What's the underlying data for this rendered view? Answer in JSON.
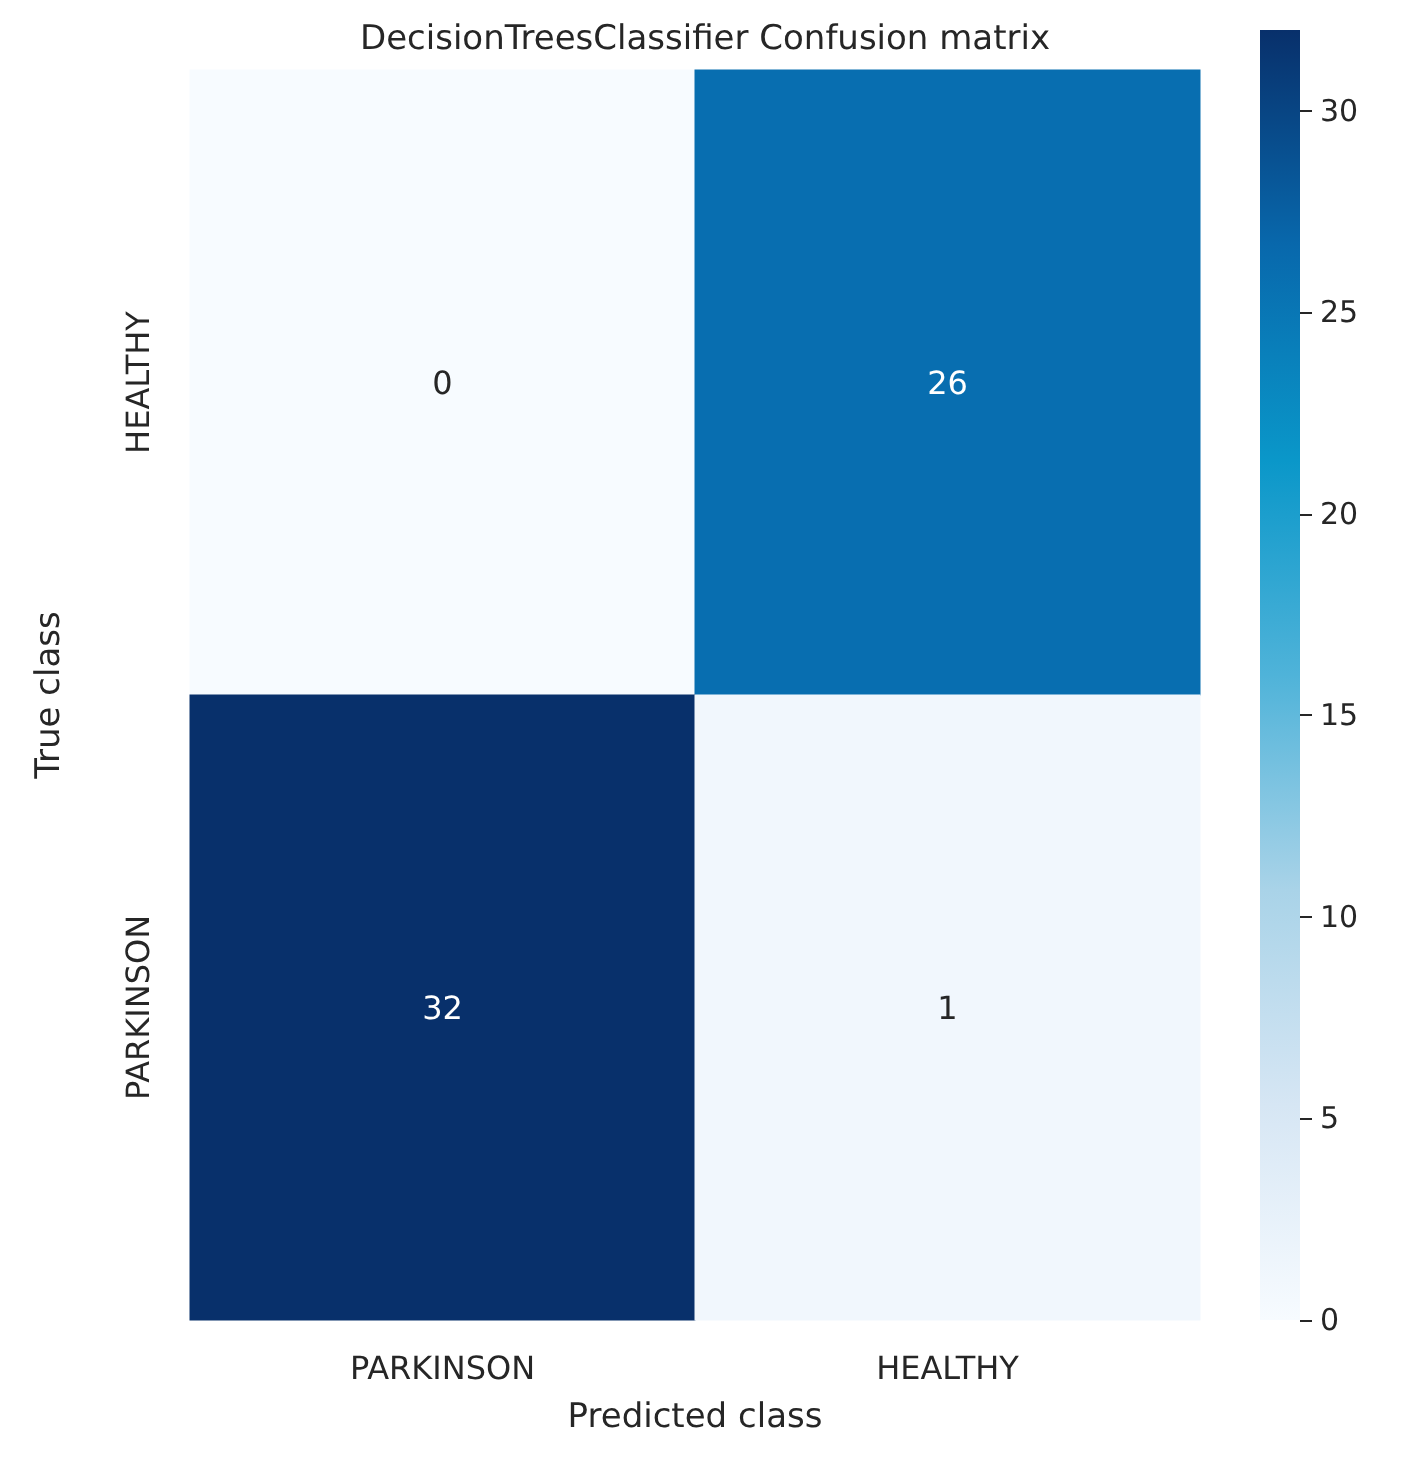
{
  "chart_data": {
    "type": "heatmap",
    "title": "DecisionTreesClassifier Confusion matrix",
    "xlabel": "Predicted class",
    "ylabel": "True class",
    "categories": [
      "PARKINSON",
      "HEALTHY"
    ],
    "y_categories": [
      "HEALTHY",
      "PARKINSON"
    ],
    "cells": [
      [
        0,
        26
      ],
      [
        32,
        1
      ]
    ],
    "clim": [
      0,
      32
    ],
    "cticks": [
      0,
      5,
      10,
      15,
      20,
      25,
      30
    ],
    "data_labels": true
  }
}
